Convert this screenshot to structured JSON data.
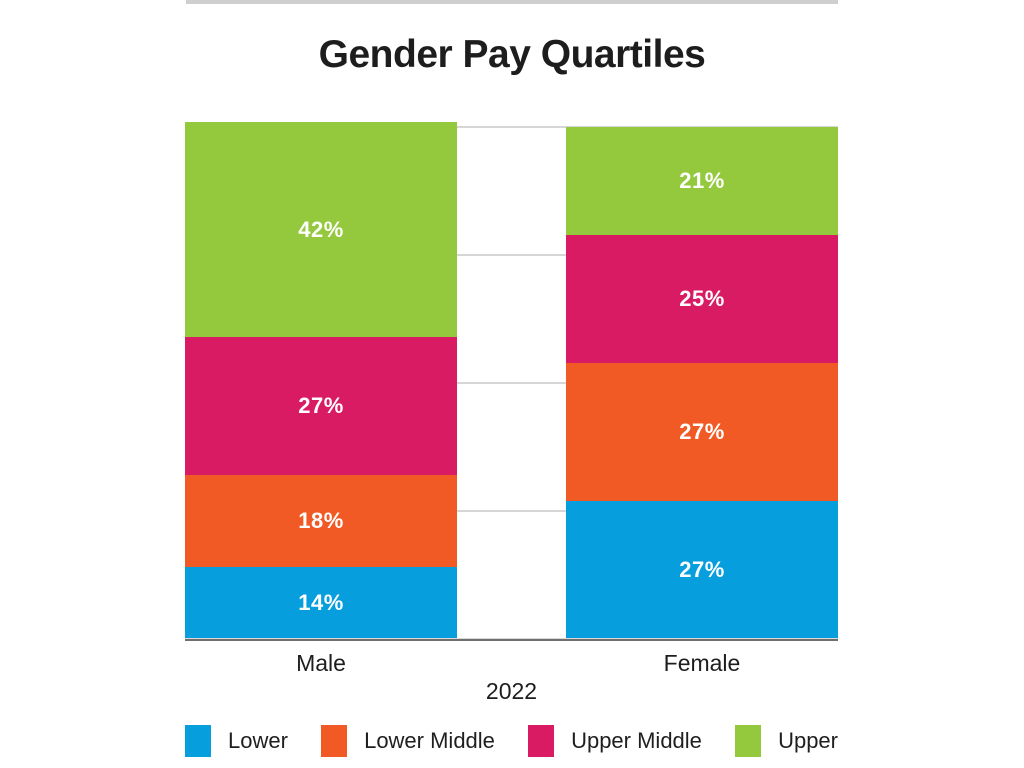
{
  "title": "Gender Pay Quartiles",
  "x_axis_title": "2022",
  "chart_data": {
    "type": "bar",
    "stacked": true,
    "title": "Gender Pay Quartiles",
    "xlabel": "2022",
    "ylabel": "",
    "unit": "%",
    "ylim": [
      0,
      100
    ],
    "grid": true,
    "gridline_values": [
      25,
      50,
      75,
      100
    ],
    "legend_position": "bottom",
    "categories": [
      "Male",
      "Female"
    ],
    "series": [
      {
        "name": "Lower",
        "color": "#069edc",
        "values": [
          14,
          27
        ]
      },
      {
        "name": "Lower Middle",
        "color": "#f15a24",
        "values": [
          18,
          27
        ]
      },
      {
        "name": "Upper Middle",
        "color": "#d91b63",
        "values": [
          27,
          25
        ]
      },
      {
        "name": "Upper",
        "color": "#95c93d",
        "values": [
          42,
          21
        ]
      }
    ],
    "value_labels": {
      "Male": [
        "14%",
        "18%",
        "27%",
        "42%"
      ],
      "Female": [
        "27%",
        "27%",
        "25%",
        "21%"
      ]
    }
  },
  "legend": {
    "items": [
      {
        "label": "Lower",
        "color": "#069edc"
      },
      {
        "label": "Lower Middle",
        "color": "#f15a24"
      },
      {
        "label": "Upper Middle",
        "color": "#d91b63"
      },
      {
        "label": "Upper",
        "color": "#95c93d"
      }
    ]
  }
}
